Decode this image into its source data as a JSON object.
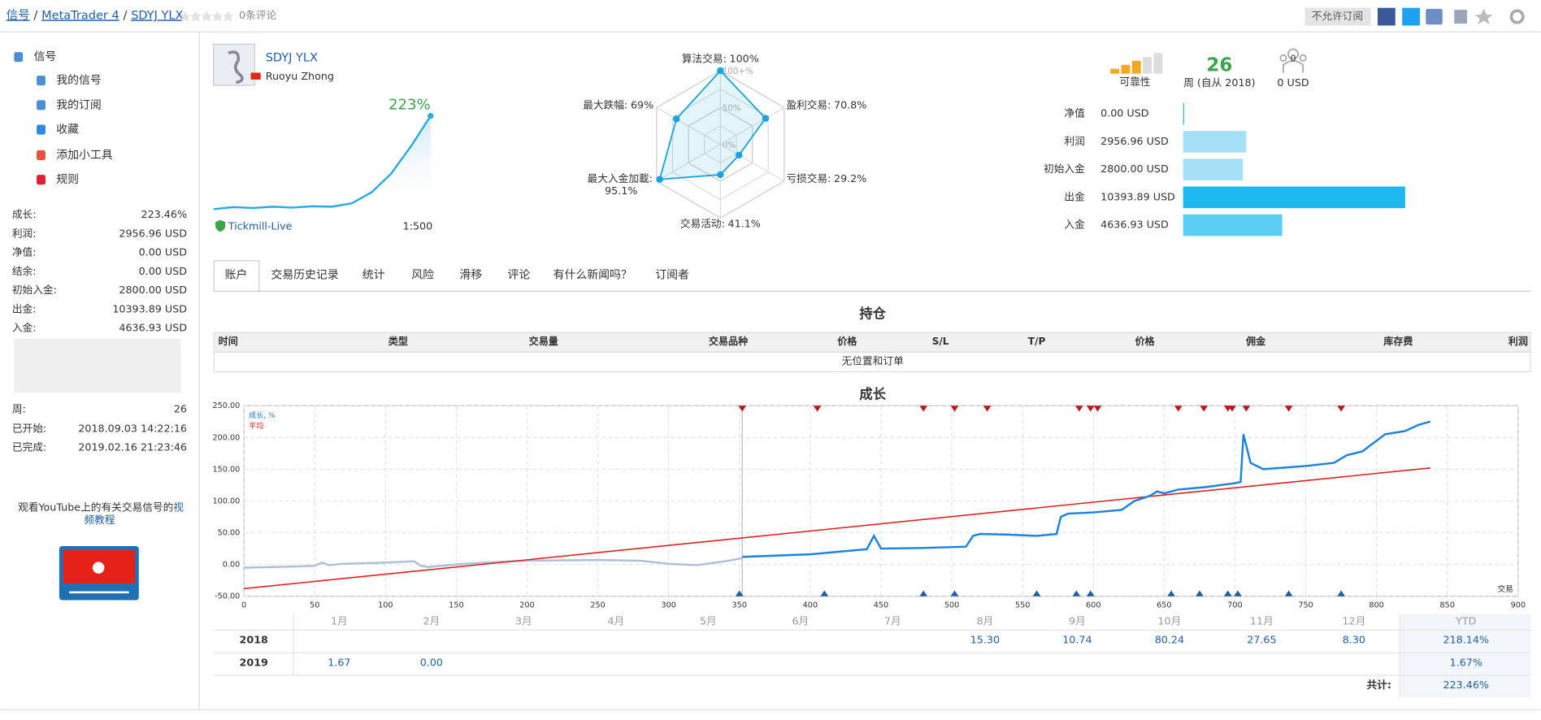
{
  "header": {
    "breadcrumb": [
      "信号",
      "MetaTrader 4",
      "SDYJ YLX"
    ],
    "separator": "/",
    "reviews": "0条评论",
    "subscribe_button": "不允许订阅"
  },
  "sidebar": {
    "nav": [
      "信号",
      "我的信号",
      "我的订阅",
      "收藏",
      "添加小工具",
      "规则"
    ],
    "stats": [
      {
        "label": "成长:",
        "value": "223.46%"
      },
      {
        "label": "利润:",
        "value": "2956.96 USD"
      },
      {
        "label": "净值:",
        "value": "0.00 USD"
      },
      {
        "label": "结余:",
        "value": "0.00 USD"
      },
      {
        "label": "初始入金:",
        "value": "2800.00 USD"
      },
      {
        "label": "出金:",
        "value": "10393.89 USD"
      },
      {
        "label": "入金:",
        "value": "4636.93 USD"
      }
    ],
    "stats2": [
      {
        "label": "周:",
        "value": "26"
      },
      {
        "label": "已开始:",
        "value": "2018.09.03 14:22:16"
      },
      {
        "label": "已完成:",
        "value": "2019.02.16 21:23:46"
      }
    ],
    "video_text": "观看YouTube上的有关交易信号的",
    "video_link_1": "视",
    "video_link_2": "频教程"
  },
  "profile": {
    "name": "SDYJ YLX",
    "author": "Ruoyu Zhong",
    "growth": "223%",
    "broker": "Tickmill-Live",
    "leverage": "1:500",
    "growth_curve": [
      0,
      5,
      3,
      6,
      4,
      7,
      6,
      14,
      40,
      85,
      150,
      223
    ]
  },
  "radar": {
    "type": "radar",
    "categories": [
      "算法交易:",
      "盈利交易:",
      "亏损交易:",
      "交易活动:",
      "最大入金加載:",
      "最大跌幅:"
    ],
    "values": [
      100,
      70.8,
      29.2,
      41.1,
      95.1,
      69
    ],
    "value_labels": [
      "100%",
      "70.8%",
      "29.2%",
      "41.1%",
      "95.1%",
      "69%"
    ],
    "rlim": [
      0,
      100
    ],
    "rticks": [
      {
        "value": 0,
        "label": "0%"
      },
      {
        "value": 50,
        "label": "50%"
      },
      {
        "value": 100,
        "label": "100+%"
      }
    ],
    "color": "#1aa3de"
  },
  "summary": {
    "reliability": "可靠性",
    "weeks": 26,
    "weeks_label": "周 (自从 2018)",
    "subscribers": 0,
    "subscribers_funds": "0 USD"
  },
  "balance": {
    "type": "bar",
    "categories": [
      "净值",
      "利润",
      "初始入金",
      "出金",
      "入金"
    ],
    "values": [
      0,
      2956.96,
      2800,
      10393.89,
      4636.93
    ],
    "value_labels": [
      "0.00 USD",
      "2956.96 USD",
      "2800.00 USD",
      "10393.89 USD",
      "4636.93 USD"
    ],
    "colors": [
      "#a6e0f7",
      "#a6e0f7",
      "#a6e0f7",
      "#1cb8f0",
      "#5ccdf2"
    ]
  },
  "tabs": [
    "账户",
    "交易历史记录",
    "统计",
    "风险",
    "滑移",
    "评论",
    "有什么新闻吗？",
    "订阅者"
  ],
  "positions": {
    "title": "持仓",
    "columns": [
      "时间",
      "类型",
      "交易量",
      "交易品种",
      "价格",
      "S/L",
      "T/P",
      "价格",
      "佣金",
      "库存费",
      "利润"
    ],
    "empty": "无位置和订单"
  },
  "chart_data": {
    "type": "line",
    "title": "成长",
    "x_label": "交易",
    "xlim": [
      0,
      900
    ],
    "xticks": [
      0,
      50,
      100,
      150,
      200,
      250,
      300,
      350,
      400,
      450,
      500,
      550,
      600,
      650,
      700,
      750,
      800,
      850,
      900
    ],
    "ylim": [
      -50,
      250
    ],
    "yticks": [
      {
        "value": -50,
        "label": "-50.00"
      },
      {
        "value": 0,
        "label": "0.00"
      },
      {
        "value": 50,
        "label": "50.00"
      },
      {
        "value": 100,
        "label": "100.00"
      },
      {
        "value": 150,
        "label": "150.00"
      },
      {
        "value": 200,
        "label": "200.00"
      },
      {
        "value": 250,
        "label": "250.00"
      }
    ],
    "grid": true,
    "series": [
      {
        "name": "成长, %",
        "color": "#1a82e0",
        "x": [
          352,
          400,
          440,
          445,
          450,
          480,
          510,
          515,
          520,
          540,
          560,
          574,
          577,
          582,
          600,
          620,
          629,
          640,
          645,
          650,
          660,
          680,
          700,
          704,
          706,
          711,
          720,
          750,
          770,
          779,
          790,
          806,
          820,
          830,
          838
        ],
        "values": [
          12,
          16,
          24,
          45,
          25,
          26,
          28,
          45,
          48,
          47,
          45,
          48,
          75,
          80,
          82,
          86,
          100,
          108,
          115,
          112,
          118,
          122,
          128,
          130,
          205,
          160,
          150,
          155,
          160,
          172,
          178,
          205,
          210,
          220,
          225
        ]
      },
      {
        "name": "平均",
        "color": "#e02020",
        "x": [
          0,
          838
        ],
        "values": [
          -38,
          152
        ]
      }
    ],
    "pre_signal": {
      "color": "#a9c0d6",
      "x": [
        0,
        20,
        40,
        50,
        55,
        60,
        70,
        100,
        120,
        125,
        130,
        150,
        170,
        200,
        250,
        280,
        300,
        320,
        340,
        352
      ],
      "values": [
        -5,
        -4,
        -3,
        -2,
        3,
        -1,
        1,
        3,
        5,
        -2,
        -4,
        0,
        3,
        6,
        7,
        6,
        1,
        -1,
        5,
        10
      ]
    },
    "top_markers": {
      "color": "#c0141c",
      "x": [
        352,
        405,
        480,
        502,
        525,
        590,
        598,
        603,
        660,
        678,
        695,
        698,
        708,
        738,
        775
      ]
    },
    "bottom_markers": {
      "color": "#1d5fa0",
      "x": [
        350,
        410,
        480,
        502,
        560,
        588,
        598,
        655,
        675,
        695,
        702,
        738,
        775
      ]
    }
  },
  "monthly": {
    "months": [
      "1月",
      "2月",
      "3月",
      "4月",
      "5月",
      "6月",
      "7月",
      "8月",
      "9月",
      "10月",
      "11月",
      "12月"
    ],
    "ytd_header": "YTD",
    "rows": [
      {
        "year": "2018",
        "values": [
          null,
          null,
          null,
          null,
          null,
          null,
          null,
          "15.30",
          "10.74",
          "80.24",
          "27.65",
          "8.30"
        ],
        "ytd": "218.14%"
      },
      {
        "year": "2019",
        "values": [
          "1.67",
          "0.00",
          null,
          null,
          null,
          null,
          null,
          null,
          null,
          null,
          null,
          null
        ],
        "ytd": "1.67%"
      }
    ],
    "total_label": "共计:",
    "total": "223.46%"
  }
}
